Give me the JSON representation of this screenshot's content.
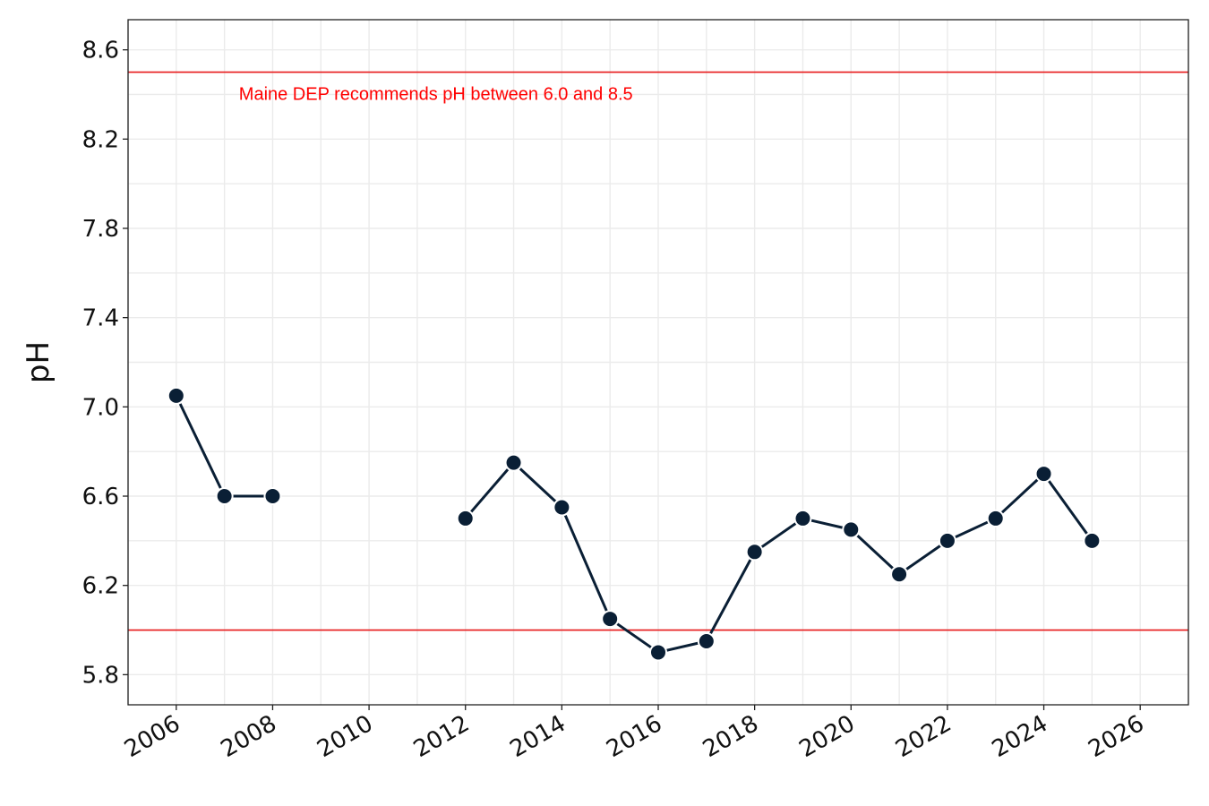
{
  "chart_data": {
    "type": "line",
    "title": "",
    "xlabel": "",
    "ylabel": "pH",
    "xlim": [
      2005,
      2027
    ],
    "ylim": [
      5.665,
      8.735
    ],
    "x_ticks": [
      2006,
      2008,
      2010,
      2012,
      2014,
      2016,
      2018,
      2020,
      2022,
      2024,
      2026
    ],
    "y_ticks": [
      5.8,
      6.2,
      6.6,
      7.0,
      7.4,
      7.8,
      8.2,
      8.6
    ],
    "x_tick_labels": [
      "2006",
      "2008",
      "2010",
      "2012",
      "2014",
      "2016",
      "2018",
      "2020",
      "2022",
      "2024",
      "2026"
    ],
    "y_tick_labels": [
      "5.8",
      "6.2",
      "6.6",
      "7.0",
      "7.4",
      "7.8",
      "8.2",
      "8.6"
    ],
    "grid": true,
    "series": [
      {
        "x": [
          2006,
          2007,
          2008,
          2009,
          2010,
          2011,
          2012,
          2013,
          2014,
          2015,
          2016,
          2017,
          2018,
          2019,
          2020,
          2021,
          2022,
          2023,
          2024,
          2025
        ],
        "values": [
          7.05,
          6.6,
          6.6,
          null,
          null,
          null,
          6.5,
          6.75,
          6.55,
          6.05,
          5.9,
          5.95,
          6.35,
          6.5,
          6.45,
          6.25,
          6.4,
          6.5,
          6.7,
          6.4
        ],
        "color": "#0a1f35"
      }
    ],
    "reference_lines": [
      {
        "y": 8.5,
        "color": "#e8191a"
      },
      {
        "y": 6.0,
        "color": "#e8191a"
      }
    ],
    "annotation": {
      "text": "Maine DEP recommends pH between 6.0 and 8.5",
      "x": 2007.3,
      "y": 8.4,
      "color": "#ff0000"
    }
  }
}
